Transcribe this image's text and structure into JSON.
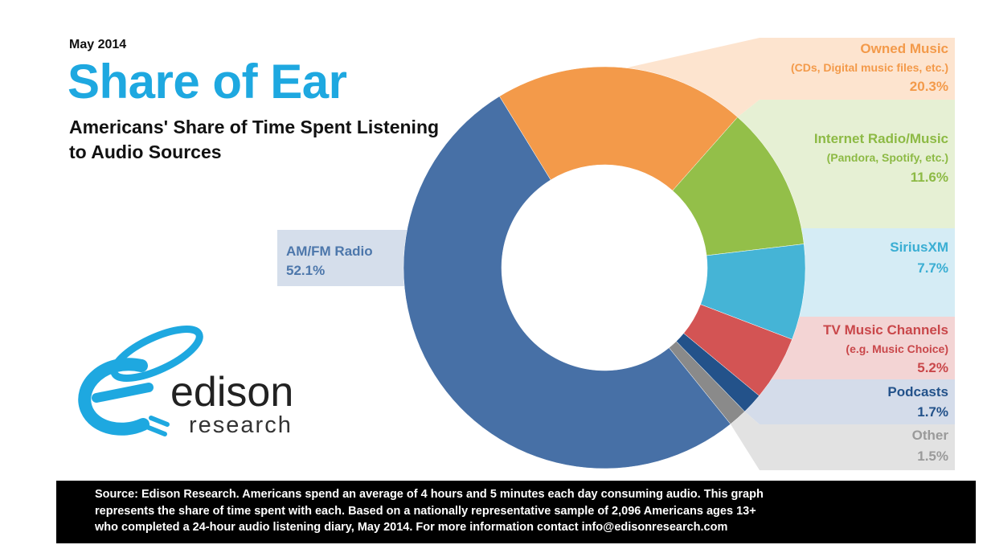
{
  "header": {
    "date": "May 2014",
    "title": "Share of Ear",
    "subtitle": "Americans' Share of Time Spent Listening to Audio Sources"
  },
  "chart_data": {
    "type": "donut",
    "title": "Share of Ear",
    "subtitle": "Americans' Share of Time Spent Listening to Audio Sources",
    "slices": [
      {
        "name": "Owned Music",
        "sub": "(CDs, Digital music files, etc.)",
        "value": 20.3,
        "label": "20.3%",
        "color": "#f39a4a",
        "band": "#fde4cf",
        "text_color": "#f39a4a"
      },
      {
        "name": "Internet Radio/Music",
        "sub": "(Pandora, Spotify, etc.)",
        "value": 11.6,
        "label": "11.6%",
        "color": "#93bf49",
        "band": "#e6f0d4",
        "text_color": "#8dba45"
      },
      {
        "name": "SiriusXM",
        "sub": "",
        "value": 7.7,
        "label": "7.7%",
        "color": "#45b4d6",
        "band": "#d5ecf5",
        "text_color": "#3aaed3"
      },
      {
        "name": "TV Music Channels",
        "sub": "(e.g. Music Choice)",
        "value": 5.2,
        "label": "5.2%",
        "color": "#d35454",
        "band": "#f3d4d4",
        "text_color": "#c9474a"
      },
      {
        "name": "Podcasts",
        "sub": "",
        "value": 1.7,
        "label": "1.7%",
        "color": "#23528a",
        "band": "#d4dcea",
        "text_color": "#23528a"
      },
      {
        "name": "Other",
        "sub": "",
        "value": 1.5,
        "label": "1.5%",
        "color": "#8a8a8a",
        "band": "#e2e2e2",
        "text_color": "#9a9a9a"
      },
      {
        "name": "AM/FM Radio",
        "sub": "",
        "value": 52.1,
        "label": "52.1%",
        "color": "#4770a6",
        "band": "#d5deeb",
        "text_color": "#4d77ab"
      }
    ]
  },
  "logo": {
    "name": "edison",
    "tagline": "research",
    "color": "#1ea8e0"
  },
  "footer": {
    "lines": [
      "Source: Edison Research.  Americans spend an average of 4 hours and 5 minutes each day consuming audio.  This graph",
      "represents the share of time spent with each.  Based on a nationally representative sample of 2,096 Americans ages 13+",
      "who completed a 24-hour audio listening diary, May 2014.  For more information contact info@edisonresearch.com"
    ]
  }
}
